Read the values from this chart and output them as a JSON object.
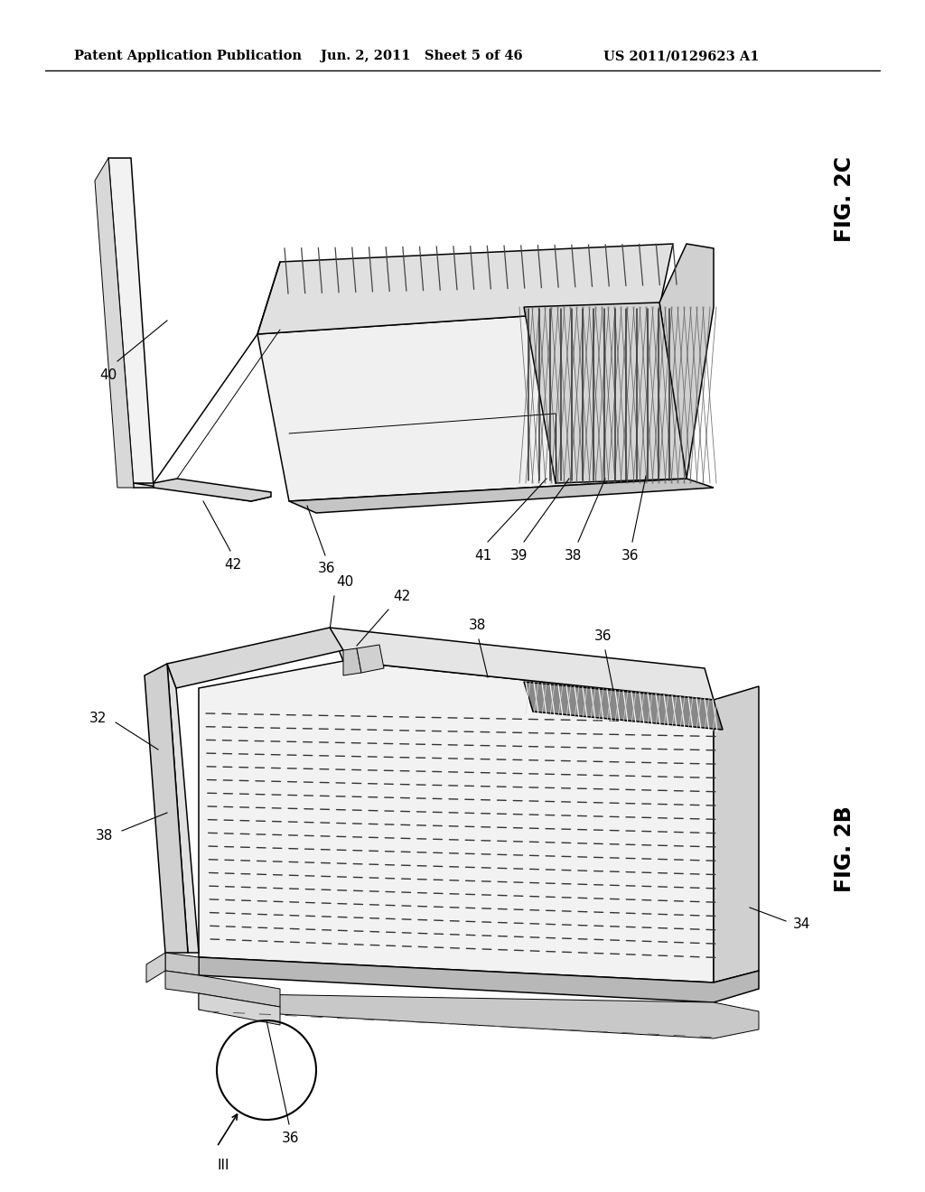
{
  "header_left": "Patent Application Publication",
  "header_mid": "Jun. 2, 2011   Sheet 5 of 46",
  "header_right": "US 2011/0129623 A1",
  "fig_top_label": "FIG. 2C",
  "fig_bottom_label": "FIG. 2B",
  "background_color": "#ffffff",
  "line_color": "#000000",
  "header_fontsize": 10.5,
  "ref_fontsize": 11,
  "fig_label_fontsize": 17,
  "gray_light": "#e8e8e8",
  "gray_mid": "#cccccc",
  "gray_dark": "#aaaaaa",
  "gray_xdark": "#888888"
}
